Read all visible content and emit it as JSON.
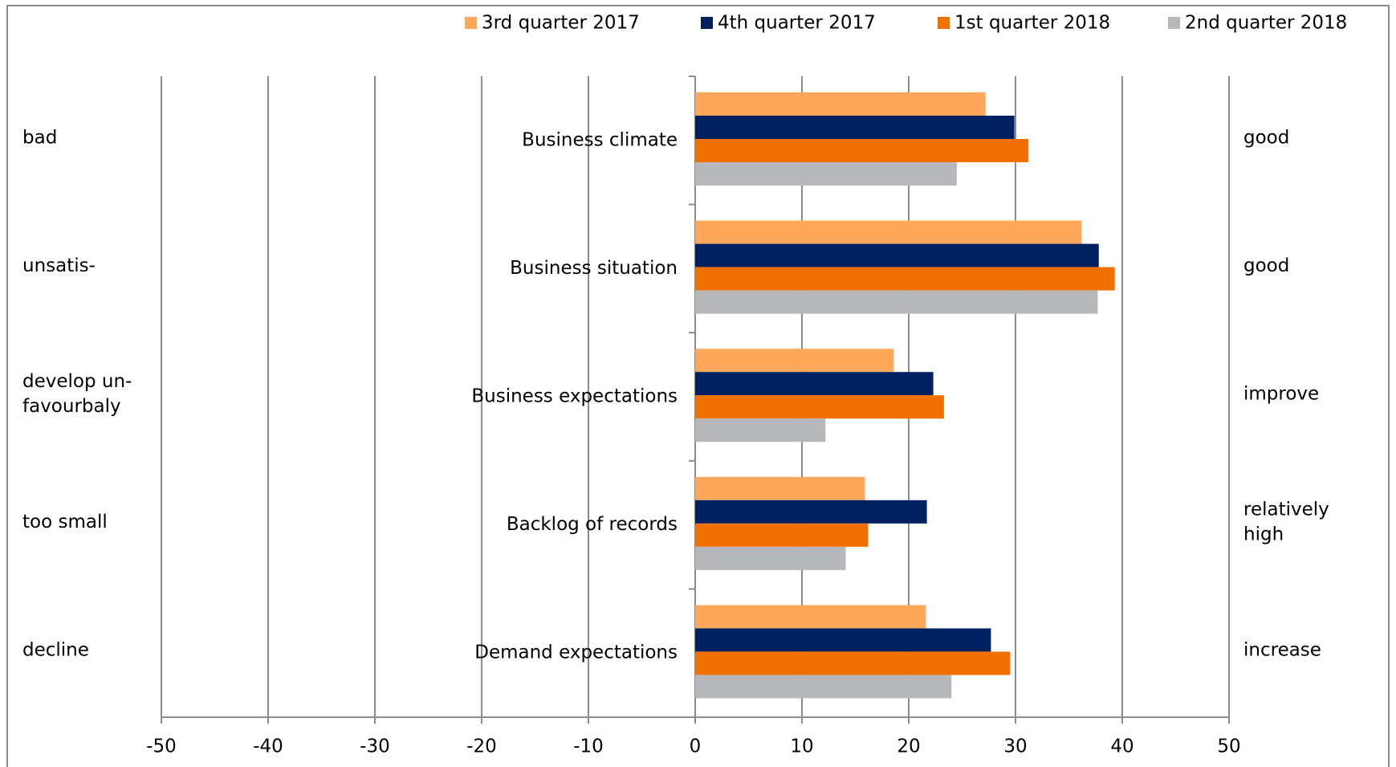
{
  "chart_data": {
    "type": "hbar",
    "categories": [
      "Business climate",
      "Business situation",
      "Business expectations",
      "Backlog of records",
      "Demand expectations"
    ],
    "series": [
      {
        "name": "3rd quarter 2017",
        "color": "#ffa85c",
        "values": [
          27.2,
          36.2,
          18.6,
          15.9,
          21.6
        ]
      },
      {
        "name": "4th quarter 2017",
        "color": "#002060",
        "values": [
          29.9,
          37.8,
          22.3,
          21.7,
          27.7
        ]
      },
      {
        "name": "1st quarter 2018",
        "color": "#f07000",
        "values": [
          31.2,
          39.3,
          23.3,
          16.2,
          29.5
        ]
      },
      {
        "name": "2nd quarter 2018",
        "color": "#b7b8bc",
        "values": [
          24.5,
          37.7,
          12.2,
          14.1,
          24.0
        ]
      }
    ],
    "xlim": [
      -50,
      50
    ],
    "xticks": [
      -50,
      -40,
      -30,
      -20,
      -10,
      0,
      10,
      20,
      30,
      40,
      50
    ],
    "grid": true,
    "left_annotations": [
      [
        "bad"
      ],
      [
        "unsatis-"
      ],
      [
        "develop un-",
        "favourbaly"
      ],
      [
        "too small"
      ],
      [
        "decline"
      ]
    ],
    "right_annotations": [
      [
        "good"
      ],
      [
        "good"
      ],
      [
        "improve"
      ],
      [
        "relatively",
        "high"
      ],
      [
        "increase"
      ]
    ]
  }
}
